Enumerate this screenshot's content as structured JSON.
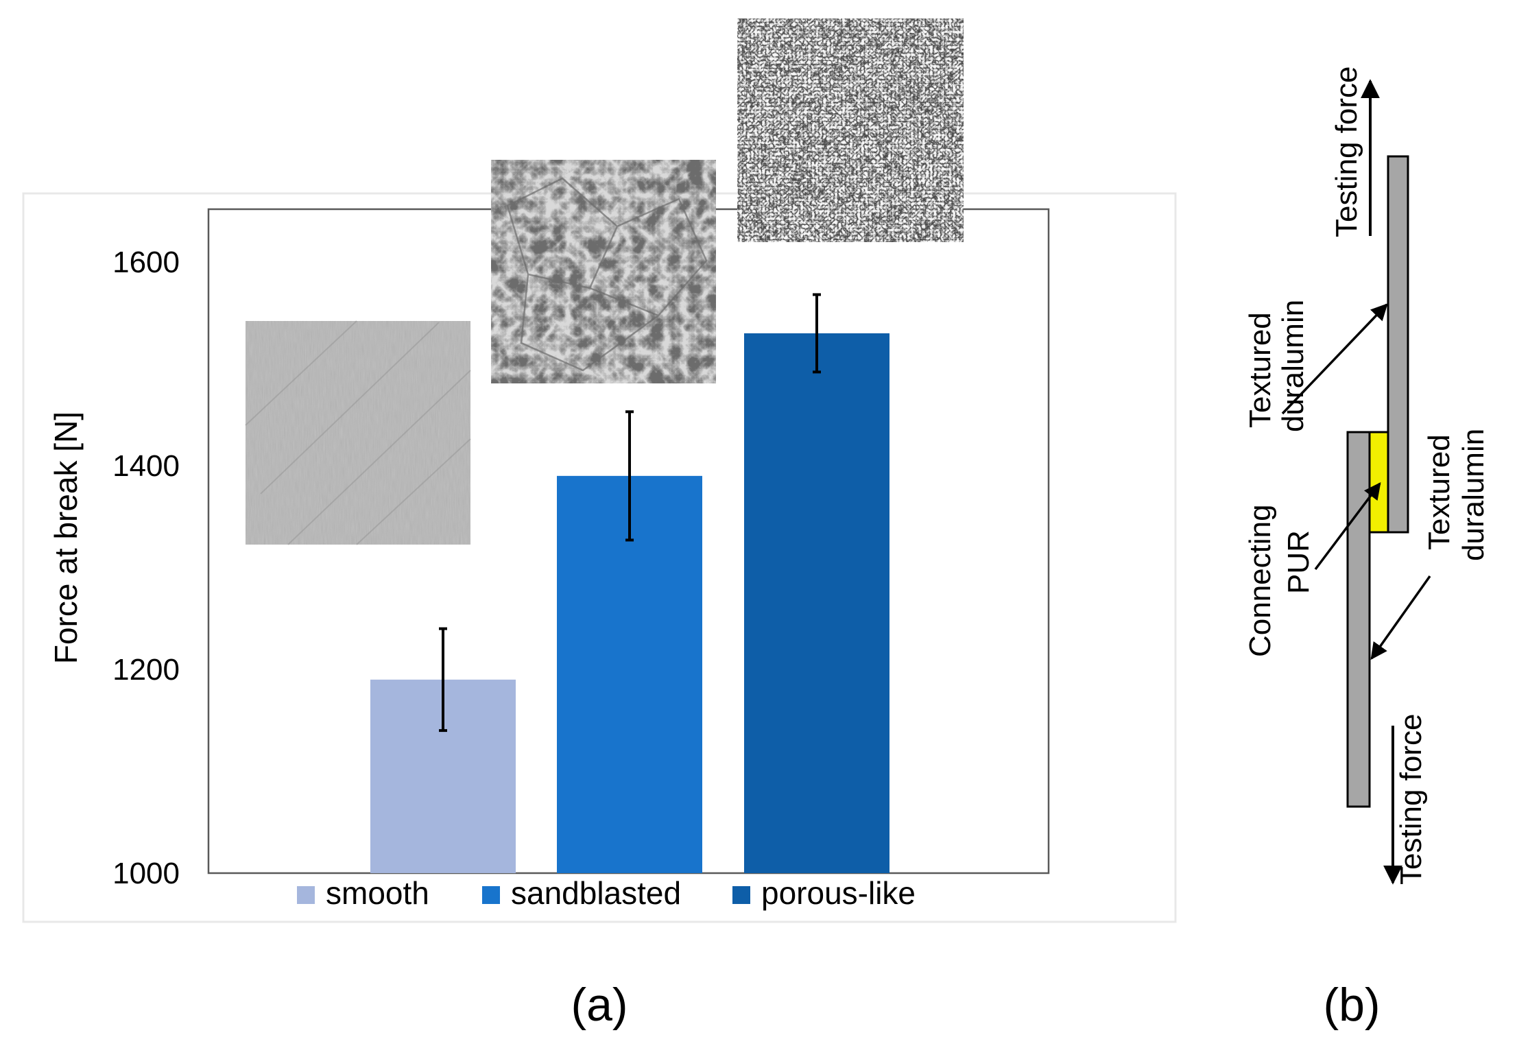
{
  "chart_data": {
    "type": "bar",
    "ylabel": "Force at break [N]",
    "xlabel": "",
    "ylim": [
      1000,
      1600
    ],
    "yticks": [
      1000,
      1200,
      1400,
      1600
    ],
    "grid": false,
    "legend_position": "bottom",
    "categories": [
      "smooth",
      "sandblasted",
      "porous-like"
    ],
    "values": [
      1190,
      1390,
      1530
    ],
    "errors": [
      50,
      63,
      38
    ],
    "colors": [
      "#a5b6dd",
      "#1874cc",
      "#0e5ea8"
    ]
  },
  "labels": {
    "panel_a": "(a)",
    "panel_b": "(b)"
  },
  "diagram": {
    "testing_force_top": "Testing force",
    "testing_force_bottom": "Testing force",
    "textured_duralumin_upper": [
      "Textured",
      "duralumin"
    ],
    "textured_duralumin_lower": [
      "Textured",
      "duralumin"
    ],
    "connecting_pur": [
      "Connecting",
      "PUR"
    ],
    "colors": {
      "plate": "#a6a6a6",
      "adhesive": "#f2ef00",
      "outline": "#000000"
    }
  },
  "micrographs": [
    {
      "name": "smooth-surface-micrograph",
      "tone": "light"
    },
    {
      "name": "sandblasted-surface-micrograph",
      "tone": "medium"
    },
    {
      "name": "porous-like-surface-micrograph",
      "tone": "dark"
    }
  ]
}
